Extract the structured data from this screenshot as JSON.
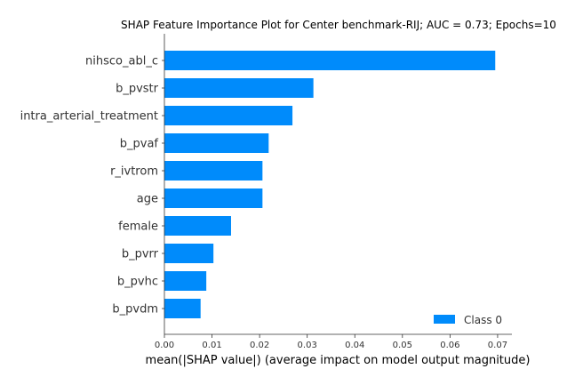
{
  "chart_data": {
    "type": "bar",
    "orientation": "horizontal",
    "title": "SHAP Feature Importance Plot for Center benchmark-RIJ; AUC = 0.73; Epochs=10",
    "xlabel": "mean(|SHAP value|) (average impact on model output magnitude)",
    "ylabel": "",
    "categories": [
      "nihsco_abl_c",
      "b_pvstr",
      "intra_arterial_treatment",
      "b_pvaf",
      "r_ivtrom",
      "age",
      "female",
      "b_pvrr",
      "b_pvhc",
      "b_pvdm"
    ],
    "series": [
      {
        "name": "Class 0",
        "color": "#008bfb",
        "values": [
          0.0695,
          0.0313,
          0.0269,
          0.0219,
          0.0206,
          0.0206,
          0.014,
          0.0103,
          0.0088,
          0.0076
        ]
      }
    ],
    "xlim": [
      0,
      0.073
    ],
    "xticks": [
      "0.00",
      "0.01",
      "0.02",
      "0.03",
      "0.04",
      "0.05",
      "0.06",
      "0.07"
    ],
    "grid": false,
    "legend_position": "bottom-right"
  }
}
